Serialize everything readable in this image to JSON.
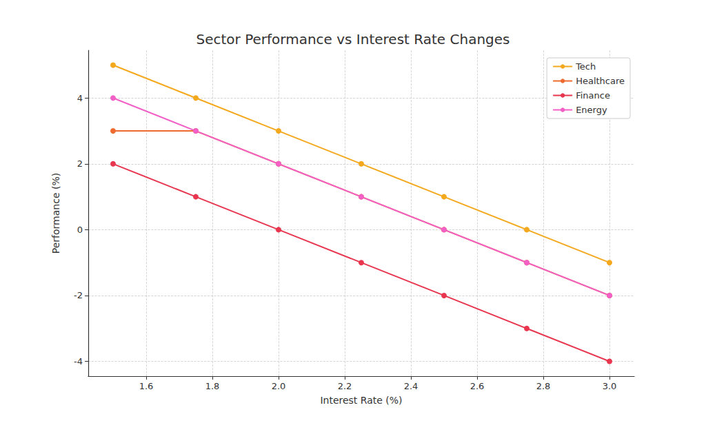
{
  "chart_data": {
    "type": "line",
    "title": "Sector Performance vs Interest Rate Changes",
    "x_label": "Interest Rate (%)",
    "y_label": "Performance (%)",
    "x": [
      1.5,
      1.75,
      2.0,
      2.25,
      2.5,
      2.75,
      3.0
    ],
    "series": [
      {
        "name": "Tech",
        "color": "#f4a81d",
        "values": [
          5,
          4,
          3,
          2,
          1,
          0,
          -1
        ]
      },
      {
        "name": "Healthcare",
        "color": "#ee6a2f",
        "values": [
          3,
          3,
          2,
          1,
          0,
          -1,
          -2
        ]
      },
      {
        "name": "Finance",
        "color": "#e8364f",
        "values": [
          2,
          1,
          0,
          -1,
          -2,
          -3,
          -4
        ]
      },
      {
        "name": "Energy",
        "color": "#f25fc6",
        "values": [
          4,
          3,
          2,
          1,
          0,
          -1,
          -2
        ]
      }
    ],
    "xlim": [
      1.425,
      3.075
    ],
    "xticks": [
      1.6,
      1.8,
      {
        "value": 2,
        "label": "2.0"
      },
      2.2,
      2.4,
      2.6,
      2.8,
      {
        "value": 3,
        "label": "3.0"
      }
    ],
    "ylim": [
      -4.45,
      5.45
    ],
    "yticks": [
      -4,
      -2,
      0,
      2,
      4
    ],
    "grid": true,
    "legend": "upper right",
    "marker": "circle",
    "line_style": "solid"
  }
}
